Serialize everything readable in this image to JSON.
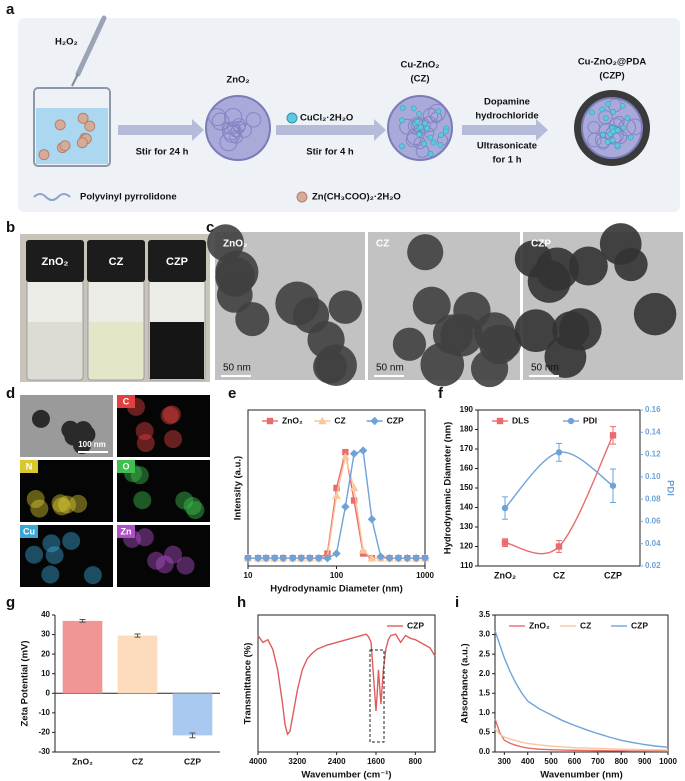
{
  "panel_labels": [
    "a",
    "b",
    "c",
    "d",
    "e",
    "f",
    "g",
    "h",
    "i"
  ],
  "scheme": {
    "reagent": "H₂O₂",
    "step1": "Stir for 24 h",
    "product1": "ZnO₂",
    "reagent2": "CuCl₂·2H₂O",
    "step2": "Stir for 4 h",
    "product2": [
      "Cu-ZnO₂",
      "(CZ)"
    ],
    "reagent3": [
      "Dopamine",
      "hydrochloride"
    ],
    "step3": [
      "Ultrasonicate",
      "for 1 h"
    ],
    "product3": [
      "Cu-ZnO₂@PDA",
      "(CZP)"
    ],
    "legend": [
      "Polyvinyl pyrrolidone",
      "Zn(CH₃COO)₂·2H₂O"
    ]
  },
  "photo": {
    "labels": [
      "ZnO₂",
      "CZ",
      "CZP"
    ]
  },
  "tem": {
    "labels": [
      "ZnO₂",
      "CZ",
      "CZP"
    ],
    "scale": [
      "50 nm",
      "50 nm",
      "50 nm"
    ]
  },
  "mapping": {
    "scale": "100 nm",
    "elements": [
      "C",
      "N",
      "O",
      "Cu",
      "Zn"
    ]
  },
  "chart_data": [
    {
      "type": "line",
      "xlabel": "Hydrodynamic Diameter (nm)",
      "ylabel": "Intensity (a.u.)",
      "x": [
        10,
        13,
        16,
        20,
        25,
        32,
        40,
        50,
        63,
        79,
        100,
        126,
        158,
        200,
        251,
        316,
        398,
        501,
        631,
        794,
        1000
      ],
      "xlog": true,
      "xlim": [
        10,
        1000
      ],
      "xticks": [
        10,
        100,
        1000
      ],
      "ylim": [
        0,
        1
      ],
      "legend": "top",
      "series": [
        {
          "name": "ZnO₂",
          "color": "#e96b6b",
          "marker": "square",
          "values": [
            0.05,
            0.05,
            0.05,
            0.05,
            0.05,
            0.05,
            0.05,
            0.05,
            0.05,
            0.08,
            0.5,
            0.73,
            0.42,
            0.08,
            0.05,
            0.05,
            0.05,
            0.05,
            0.05,
            0.05,
            0.05
          ]
        },
        {
          "name": "CZ",
          "color": "#f8c79a",
          "marker": "triangle",
          "values": [
            0.05,
            0.05,
            0.05,
            0.05,
            0.05,
            0.05,
            0.05,
            0.05,
            0.05,
            0.06,
            0.45,
            0.7,
            0.5,
            0.1,
            0.05,
            0.05,
            0.05,
            0.05,
            0.05,
            0.05,
            0.05
          ]
        },
        {
          "name": "CZP",
          "color": "#6fa3d8",
          "marker": "diamond",
          "values": [
            0.05,
            0.05,
            0.05,
            0.05,
            0.05,
            0.05,
            0.05,
            0.05,
            0.05,
            0.05,
            0.08,
            0.38,
            0.72,
            0.74,
            0.3,
            0.06,
            0.05,
            0.05,
            0.05,
            0.05,
            0.05
          ]
        }
      ]
    },
    {
      "type": "line",
      "categories": [
        "ZnO₂",
        "CZ",
        "CZP"
      ],
      "ylabel": "Hydrodynamic Diameter (nm)",
      "y2label": "PDI",
      "ylim": [
        110,
        190
      ],
      "yticks": [
        110,
        120,
        130,
        140,
        150,
        160,
        170,
        180,
        190
      ],
      "y2lim": [
        0.02,
        0.16
      ],
      "y2ticks": [
        0.02,
        0.04,
        0.06,
        0.08,
        {
          "value": 0.1,
          "label": "0.10"
        },
        0.12,
        0.14,
        0.16
      ],
      "smooth": true,
      "legend": "top",
      "series": [
        {
          "name": "DLS",
          "color": "#e96b6b",
          "marker": "square",
          "values": [
            122,
            120,
            177
          ],
          "errors": [
            2,
            3,
            4.5
          ]
        },
        {
          "name": "PDI",
          "color": "#6fa3d8",
          "marker": "circle",
          "axis": "y2",
          "values": [
            0.072,
            0.122,
            0.092
          ],
          "errors": [
            0.01,
            0.008,
            0.015
          ]
        }
      ]
    },
    {
      "type": "bar",
      "categories": [
        "ZnO₂",
        "CZ",
        "CZP"
      ],
      "ylabel": "Zeta Potential (mV)",
      "ylim": [
        -30,
        40
      ],
      "yticks": [
        -30,
        -20,
        -10,
        0,
        10,
        20,
        30,
        40
      ],
      "values": [
        37,
        29.5,
        -21.5
      ],
      "errors": [
        0.7,
        0.8,
        1.2
      ],
      "colors": [
        "#f19595",
        "#fcdcbc",
        "#a9c9f0"
      ]
    },
    {
      "type": "line",
      "xlabel": "Wavenumber (cm⁻¹)",
      "ylabel": "Transmittance (%)",
      "x": [
        4000,
        3900,
        3800,
        3700,
        3600,
        3500,
        3450,
        3400,
        3350,
        3300,
        3200,
        3100,
        3000,
        2900,
        2800,
        2600,
        2400,
        2200,
        2000,
        1900,
        1800,
        1750,
        1700,
        1650,
        1620,
        1600,
        1580,
        1550,
        1520,
        1500,
        1450,
        1400,
        1350,
        1300,
        1200,
        1100,
        1000,
        900,
        800,
        700,
        600,
        500,
        400
      ],
      "xlim": [
        4000,
        400
      ],
      "xticks": [
        4000,
        3200,
        2400,
        1600,
        800
      ],
      "ylim": [
        0,
        1
      ],
      "legend": "top-right",
      "series": [
        {
          "name": "CZP",
          "color": "#e05c5c",
          "values": [
            0.85,
            0.8,
            0.82,
            0.75,
            0.6,
            0.35,
            0.2,
            0.13,
            0.15,
            0.25,
            0.45,
            0.6,
            0.68,
            0.72,
            0.75,
            0.78,
            0.8,
            0.82,
            0.84,
            0.85,
            0.86,
            0.84,
            0.8,
            0.55,
            0.4,
            0.3,
            0.4,
            0.6,
            0.45,
            0.35,
            0.6,
            0.75,
            0.82,
            0.85,
            0.86,
            0.8,
            0.85,
            0.83,
            0.82,
            0.8,
            0.78,
            0.76,
            0.7
          ]
        }
      ]
    },
    {
      "type": "line",
      "xlabel": "Wavenumber (nm)",
      "ylabel": "Absorbance (a.u.)",
      "x": [
        260,
        280,
        300,
        325,
        350,
        375,
        400,
        450,
        500,
        550,
        600,
        650,
        700,
        750,
        800,
        850,
        900,
        950,
        1000
      ],
      "xlim": [
        260,
        1000
      ],
      "xticks": [
        300,
        400,
        500,
        600,
        700,
        800,
        900,
        1000
      ],
      "ylim": [
        0,
        3.5
      ],
      "yticks": [
        {
          "value": 0,
          "label": "0.0"
        },
        0.5,
        {
          "value": 1,
          "label": "1.0"
        },
        1.5,
        {
          "value": 2,
          "label": "2.0"
        },
        2.5,
        {
          "value": 3,
          "label": "3.0"
        },
        3.5
      ],
      "legend": "top",
      "series": [
        {
          "name": "ZnO₂",
          "color": "#e96b6b",
          "values": [
            0.85,
            0.5,
            0.3,
            0.22,
            0.17,
            0.13,
            0.1,
            0.07,
            0.06,
            0.05,
            0.045,
            0.04,
            0.035,
            0.03,
            0.03,
            0.025,
            0.025,
            0.02,
            0.02
          ]
        },
        {
          "name": "CZ",
          "color": "#f8c79a",
          "values": [
            0.6,
            0.45,
            0.38,
            0.33,
            0.29,
            0.25,
            0.22,
            0.18,
            0.15,
            0.13,
            0.11,
            0.1,
            0.09,
            0.08,
            0.07,
            0.065,
            0.06,
            0.055,
            0.05
          ]
        },
        {
          "name": "CZP",
          "color": "#6fa3d8",
          "values": [
            3.1,
            2.75,
            2.4,
            2.05,
            1.75,
            1.5,
            1.3,
            1.1,
            0.95,
            0.8,
            0.68,
            0.57,
            0.47,
            0.38,
            0.3,
            0.24,
            0.19,
            0.15,
            0.12
          ]
        }
      ]
    }
  ]
}
